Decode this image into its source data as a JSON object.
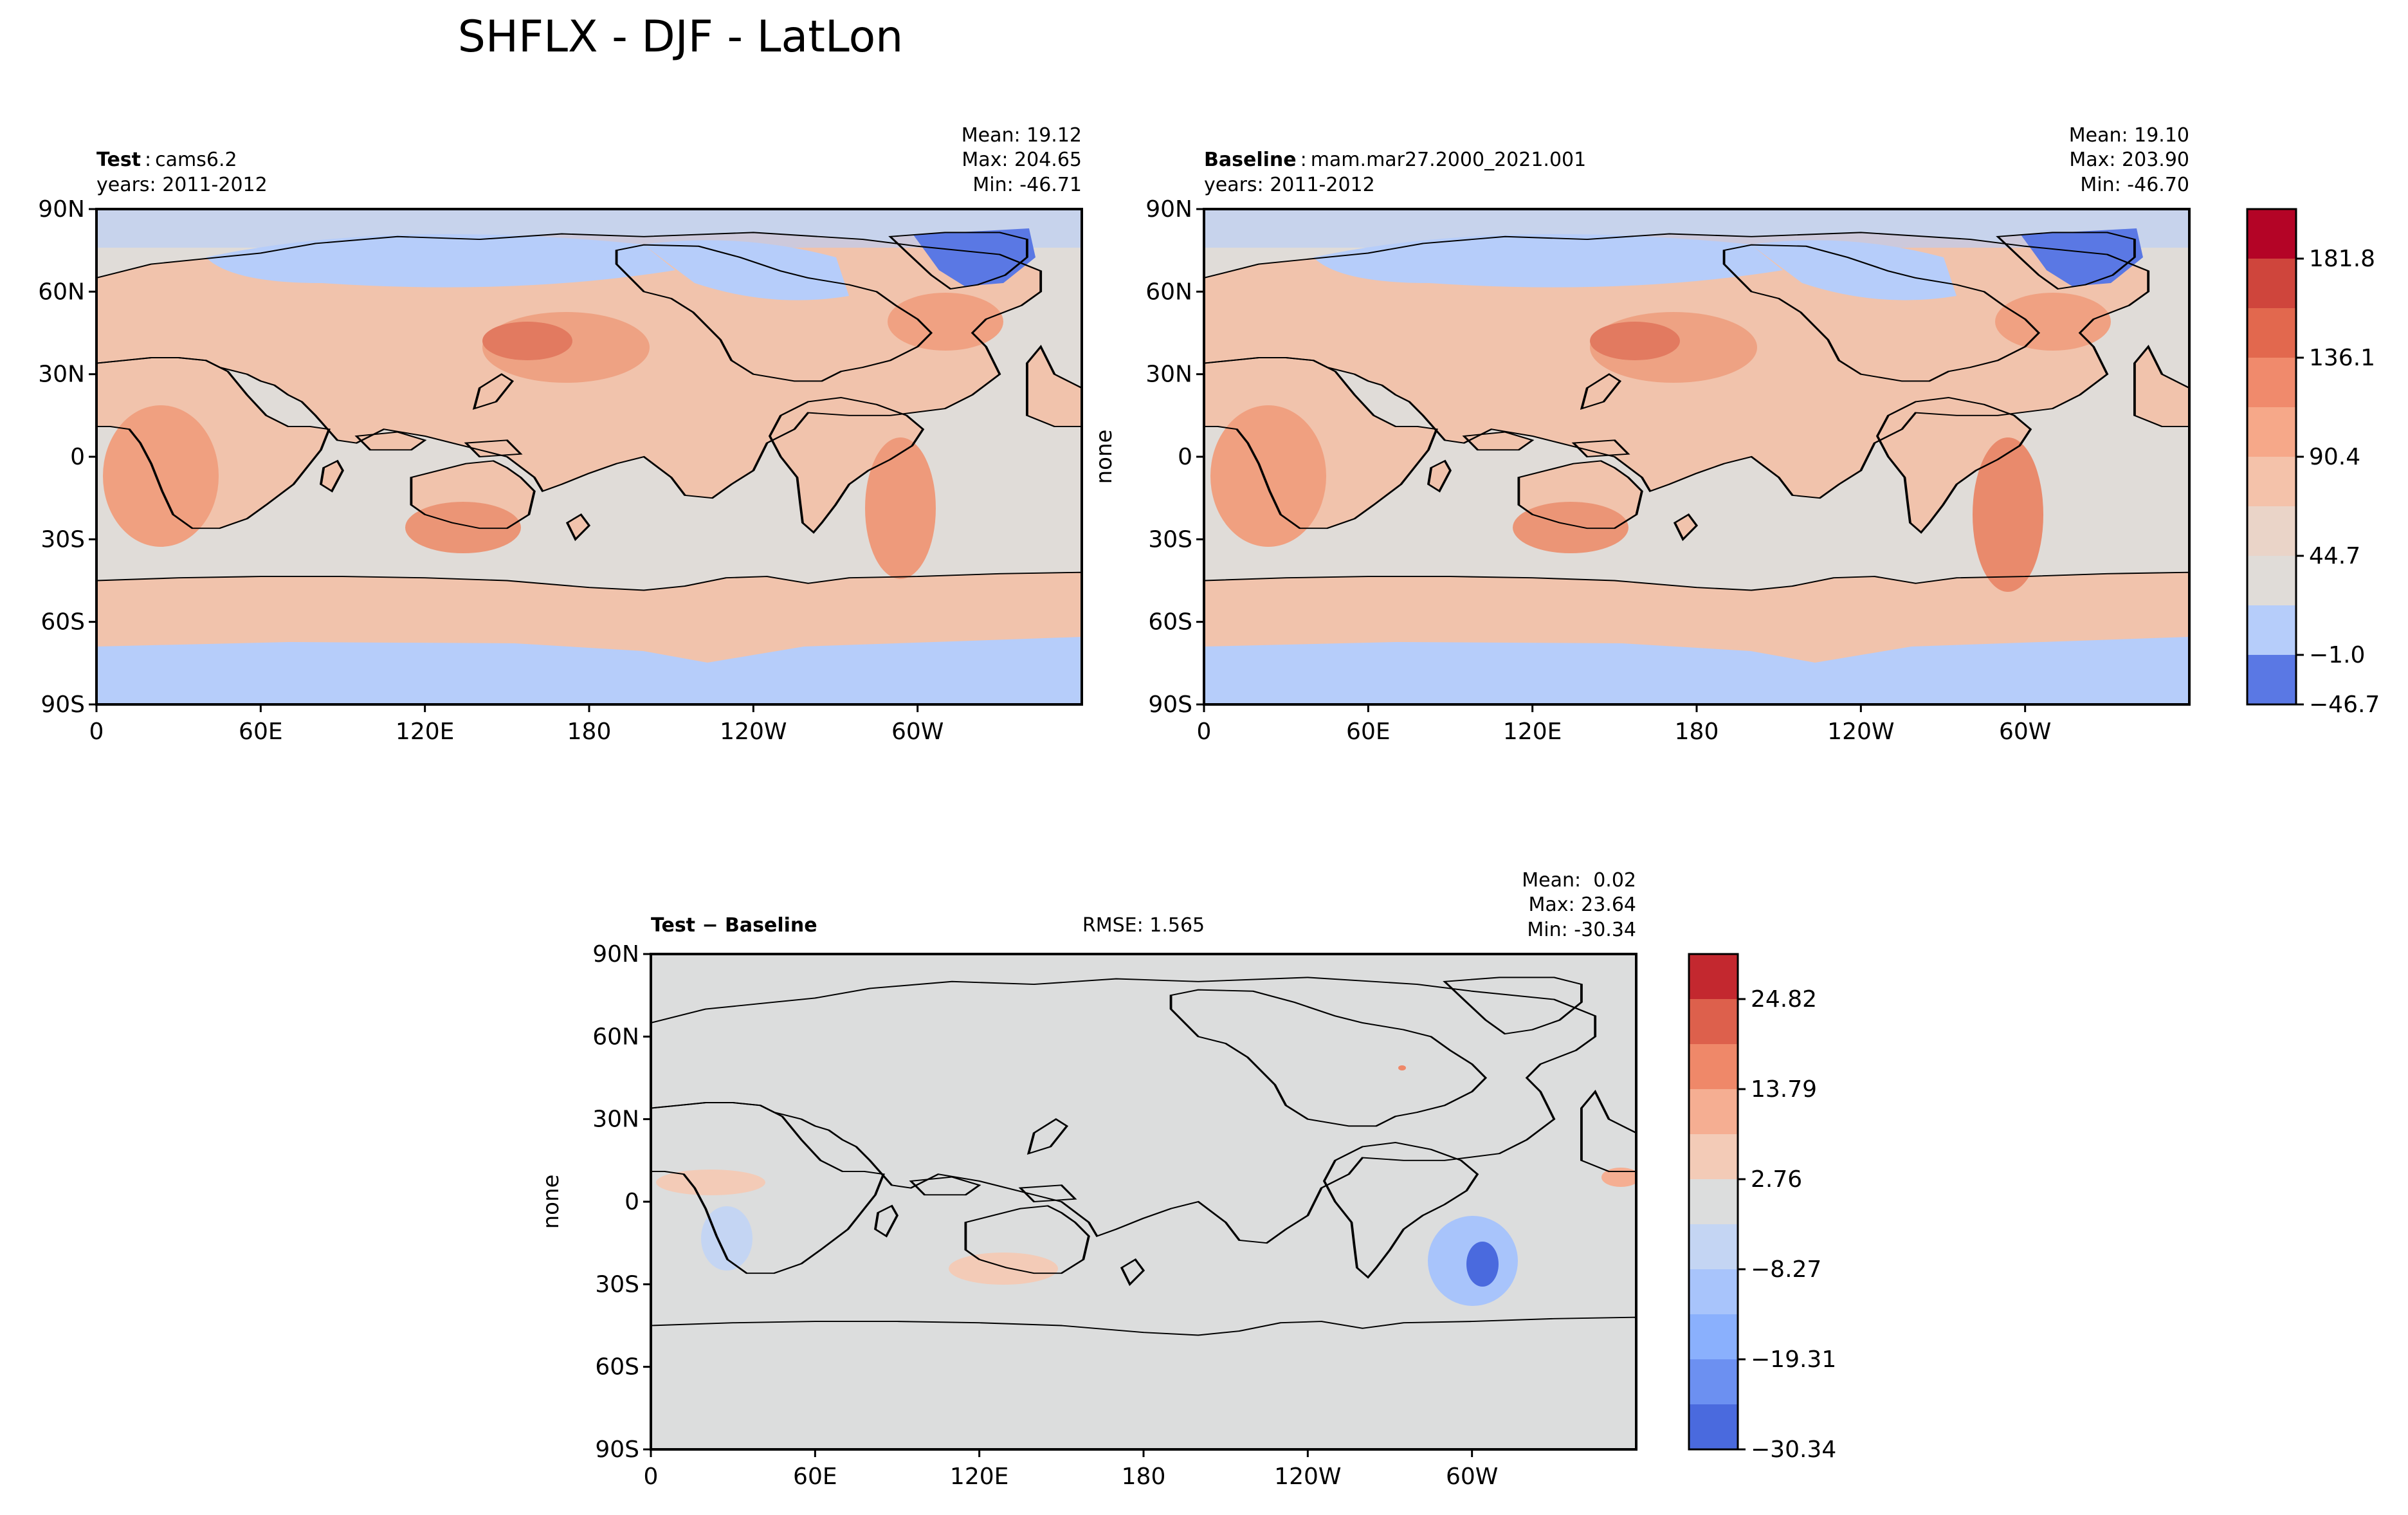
{
  "figure_title": "SHFLX - DJF - LatLon",
  "colors": {
    "ocean": "#e0dcd8",
    "diff_background": "#dcdddd",
    "land_edge": "#000000",
    "coolwarm": [
      "#5a78e4",
      "#b6cdfa",
      "#e0dcd8",
      "#f2c7b1",
      "#f6a889",
      "#ee8568",
      "#de614d",
      "#c3282f",
      "#b40426"
    ]
  },
  "chart_data": [
    {
      "type": "heatmap",
      "id": "test",
      "label_bold": "Test",
      "label_sep": ":",
      "label_value": "cams6.2",
      "years": "years: 2011-2012",
      "stats": [
        "Mean: 19.12",
        "Max: 204.65",
        "Min: -46.71"
      ],
      "ylabel": "",
      "x_ticks": [
        "0",
        "60E",
        "120E",
        "180",
        "120W",
        "60W"
      ],
      "y_ticks": [
        "90N",
        "60N",
        "30N",
        "0",
        "30S",
        "60S",
        "90S"
      ]
    },
    {
      "type": "heatmap",
      "id": "baseline",
      "label_bold": "Baseline",
      "label_sep": ":",
      "label_value": "mam.mar27.2000_2021.001",
      "years": "years: 2011-2012",
      "stats": [
        "Mean: 19.10",
        "Max: 203.90",
        "Min: -46.70"
      ],
      "ylabel": "none",
      "x_ticks": [
        "0",
        "60E",
        "120E",
        "180",
        "120W",
        "60W"
      ],
      "y_ticks": [
        "90N",
        "60N",
        "30N",
        "0",
        "30S",
        "60S",
        "90S"
      ],
      "colorbar": {
        "tick_labels": [
          "181.8",
          "136.1",
          "90.4",
          "44.7",
          "−1.0",
          "−46.7"
        ],
        "colors": [
          "#b40426",
          "#cf453c",
          "#e2684e",
          "#f08a6c",
          "#f6a889",
          "#f4c2aa",
          "#ead4c8",
          "#e0dcd8",
          "#b6cdfa",
          "#5a78e4"
        ]
      }
    },
    {
      "type": "heatmap",
      "id": "difference",
      "label": "Test − Baseline",
      "rmse": "RMSE: 1.565",
      "stats": [
        "Mean:  0.02",
        "Max: 23.64",
        "Min: -30.34"
      ],
      "ylabel": "none",
      "x_ticks": [
        "0",
        "60E",
        "120E",
        "180",
        "120W",
        "60W"
      ],
      "y_ticks": [
        "90N",
        "60N",
        "30N",
        "0",
        "30S",
        "60S",
        "90S"
      ],
      "colorbar": {
        "tick_labels": [
          "24.82",
          "13.79",
          "2.76",
          "−8.27",
          "−19.31",
          "−30.34"
        ],
        "colors": [
          "#c3282f",
          "#dd604c",
          "#ef8869",
          "#f5ae92",
          "#f3cbb7",
          "#dcdddd",
          "#c4d5f3",
          "#a8c4fb",
          "#8ab0fd",
          "#6c90f1",
          "#4a6ade"
        ]
      }
    }
  ]
}
